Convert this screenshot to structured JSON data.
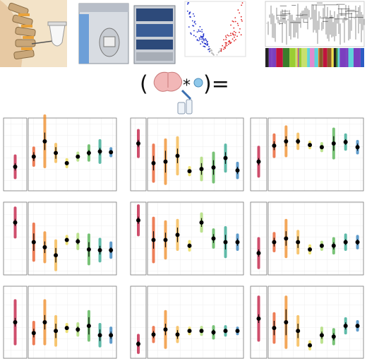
{
  "figure": {
    "equation_open": "(",
    "equation_times": "*",
    "equation_close": ")="
  },
  "chart_data": [
    {
      "type": "group-dots",
      "ylim": [
        0,
        1
      ],
      "grid": true,
      "reference_group": 0,
      "colors": [
        "#c0143c",
        "#e8531f",
        "#f08a24",
        "#f5b342",
        "#e9d84a",
        "#a6d96a",
        "#4daf4a",
        "#2ca58d",
        "#2b7bba"
      ],
      "values": [
        0.33,
        0.47,
        0.68,
        0.52,
        0.38,
        0.47,
        0.52,
        0.54,
        0.53
      ],
      "errors": [
        0.05,
        0.06,
        0.12,
        0.08,
        0.02,
        0.02,
        0.04,
        0.05,
        0.02
      ],
      "spreads": [
        0.15,
        0.12,
        0.35,
        0.12,
        0.05,
        0.05,
        0.1,
        0.15,
        0.05
      ]
    },
    {
      "type": "group-dots",
      "ylim": [
        0,
        1
      ],
      "grid": true,
      "reference_group": 0,
      "colors": [
        "#c0143c",
        "#e8531f",
        "#f08a24",
        "#f5b342",
        "#e9d84a",
        "#a6d96a",
        "#4daf4a",
        "#2ca58d",
        "#2b7bba"
      ],
      "values": [
        0.65,
        0.38,
        0.4,
        0.48,
        0.27,
        0.3,
        0.32,
        0.45,
        0.28
      ],
      "errors": [
        0.05,
        0.1,
        0.15,
        0.1,
        0.02,
        0.08,
        0.1,
        0.08,
        0.05
      ],
      "spreads": [
        0.18,
        0.25,
        0.3,
        0.25,
        0.05,
        0.15,
        0.2,
        0.18,
        0.1
      ]
    },
    {
      "type": "group-dots",
      "ylim": [
        0,
        1
      ],
      "grid": true,
      "reference_group": 0,
      "colors": [
        "#c0143c",
        "#e8531f",
        "#f08a24",
        "#f5b342",
        "#e9d84a",
        "#a6d96a",
        "#4daf4a",
        "#2ca58d",
        "#2b7bba"
      ],
      "values": [
        0.4,
        0.62,
        0.68,
        0.68,
        0.63,
        0.6,
        0.65,
        0.67,
        0.6
      ],
      "errors": [
        0.05,
        0.06,
        0.07,
        0.04,
        0.02,
        0.02,
        0.1,
        0.04,
        0.05
      ],
      "spreads": [
        0.2,
        0.15,
        0.2,
        0.1,
        0.04,
        0.05,
        0.2,
        0.1,
        0.08
      ]
    },
    {
      "type": "group-dots",
      "ylim": [
        0,
        1
      ],
      "grid": true,
      "reference_group": 0,
      "colors": [
        "#c0143c",
        "#e8531f",
        "#f08a24",
        "#f5b342",
        "#e9d84a",
        "#a6d96a",
        "#4daf4a",
        "#2ca58d",
        "#2b7bba"
      ],
      "values": [
        0.72,
        0.45,
        0.38,
        0.27,
        0.48,
        0.46,
        0.35,
        0.34,
        0.34
      ],
      "errors": [
        0.05,
        0.12,
        0.08,
        0.1,
        0.02,
        0.04,
        0.1,
        0.06,
        0.04
      ],
      "spreads": [
        0.2,
        0.25,
        0.2,
        0.2,
        0.05,
        0.1,
        0.2,
        0.15,
        0.1
      ]
    },
    {
      "type": "group-dots",
      "ylim": [
        0,
        1
      ],
      "grid": true,
      "reference_group": 0,
      "colors": [
        "#c0143c",
        "#e8531f",
        "#f08a24",
        "#f5b342",
        "#e9d84a",
        "#a6d96a",
        "#4daf4a",
        "#2ca58d",
        "#2b7bba"
      ],
      "values": [
        0.75,
        0.48,
        0.48,
        0.55,
        0.4,
        0.72,
        0.5,
        0.45,
        0.45
      ],
      "errors": [
        0.05,
        0.12,
        0.1,
        0.1,
        0.03,
        0.06,
        0.06,
        0.1,
        0.05
      ],
      "spreads": [
        0.2,
        0.3,
        0.25,
        0.2,
        0.06,
        0.12,
        0.12,
        0.2,
        0.1
      ]
    },
    {
      "type": "group-dots",
      "ylim": [
        0,
        1
      ],
      "grid": true,
      "reference_group": 0,
      "colors": [
        "#c0143c",
        "#e8531f",
        "#f08a24",
        "#f5b342",
        "#e9d84a",
        "#a6d96a",
        "#4daf4a",
        "#2ca58d",
        "#2b7bba"
      ],
      "values": [
        0.3,
        0.45,
        0.5,
        0.45,
        0.35,
        0.4,
        0.4,
        0.45,
        0.45
      ],
      "errors": [
        0.05,
        0.06,
        0.1,
        0.08,
        0.02,
        0.03,
        0.05,
        0.04,
        0.04
      ],
      "spreads": [
        0.2,
        0.12,
        0.25,
        0.15,
        0.05,
        0.05,
        0.1,
        0.1,
        0.08
      ]
    },
    {
      "type": "group-dots",
      "ylim": [
        0,
        1
      ],
      "grid": true,
      "reference_group": 0,
      "colors": [
        "#c0143c",
        "#e8531f",
        "#f08a24",
        "#f5b342",
        "#e9d84a",
        "#a6d96a",
        "#4daf4a",
        "#2ca58d",
        "#2b7bba"
      ],
      "values": [
        0.5,
        0.35,
        0.5,
        0.38,
        0.42,
        0.4,
        0.45,
        0.32,
        0.32
      ],
      "errors": [
        0.06,
        0.06,
        0.1,
        0.1,
        0.02,
        0.04,
        0.12,
        0.08,
        0.05
      ],
      "spreads": [
        0.3,
        0.15,
        0.3,
        0.2,
        0.05,
        0.08,
        0.2,
        0.15,
        0.1
      ]
    },
    {
      "type": "group-dots",
      "ylim": [
        0,
        1
      ],
      "grid": true,
      "reference_group": 0,
      "colors": [
        "#c0143c",
        "#e8531f",
        "#f08a24",
        "#f5b342",
        "#e9d84a",
        "#a6d96a",
        "#4daf4a",
        "#2ca58d",
        "#2b7bba"
      ],
      "values": [
        0.2,
        0.33,
        0.4,
        0.33,
        0.38,
        0.38,
        0.36,
        0.38,
        0.38
      ],
      "errors": [
        0.04,
        0.05,
        0.08,
        0.06,
        0.02,
        0.02,
        0.04,
        0.03,
        0.02
      ],
      "spreads": [
        0.12,
        0.1,
        0.25,
        0.1,
        0.04,
        0.05,
        0.08,
        0.06,
        0.04
      ]
    },
    {
      "type": "group-dots",
      "ylim": [
        0,
        1
      ],
      "grid": true,
      "reference_group": 0,
      "colors": [
        "#c0143c",
        "#e8531f",
        "#f08a24",
        "#f5b342",
        "#e9d84a",
        "#a6d96a",
        "#4daf4a",
        "#2ca58d",
        "#2b7bba"
      ],
      "values": [
        0.55,
        0.42,
        0.5,
        0.38,
        0.18,
        0.32,
        0.3,
        0.45,
        0.45
      ],
      "errors": [
        0.06,
        0.1,
        0.18,
        0.1,
        0.02,
        0.05,
        0.05,
        0.05,
        0.03
      ],
      "spreads": [
        0.3,
        0.2,
        0.35,
        0.2,
        0.05,
        0.1,
        0.1,
        0.1,
        0.06
      ]
    }
  ]
}
